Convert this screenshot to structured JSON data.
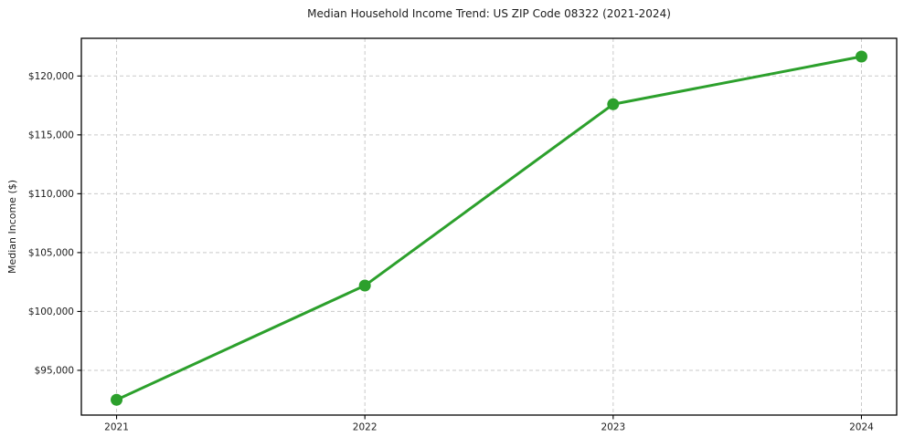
{
  "chart_data": {
    "type": "line",
    "title": "Median Household Income Trend: US ZIP Code 08322 (2021-2024)",
    "xlabel": "",
    "ylabel": "Median Income ($)",
    "categories": [
      "2021",
      "2022",
      "2023",
      "2024"
    ],
    "series": [
      {
        "name": "Median Household Income",
        "values": [
          92500,
          102200,
          117600,
          121650
        ],
        "color": "#2ca02c",
        "marker": "circle"
      }
    ],
    "ylim": [
      91200,
      123200
    ],
    "yticks": [
      95000,
      100000,
      105000,
      110000,
      115000,
      120000
    ],
    "ytick_labels": [
      "$95,000",
      "$100,000",
      "$105,000",
      "$110,000",
      "$115,000",
      "$120,000"
    ],
    "xtick_labels": [
      "2021",
      "2022",
      "2023",
      "2024"
    ],
    "grid": true,
    "grid_color": "#c9c9c9",
    "grid_style": "dashed",
    "spine_color": "#000000",
    "legend_position": "none"
  }
}
